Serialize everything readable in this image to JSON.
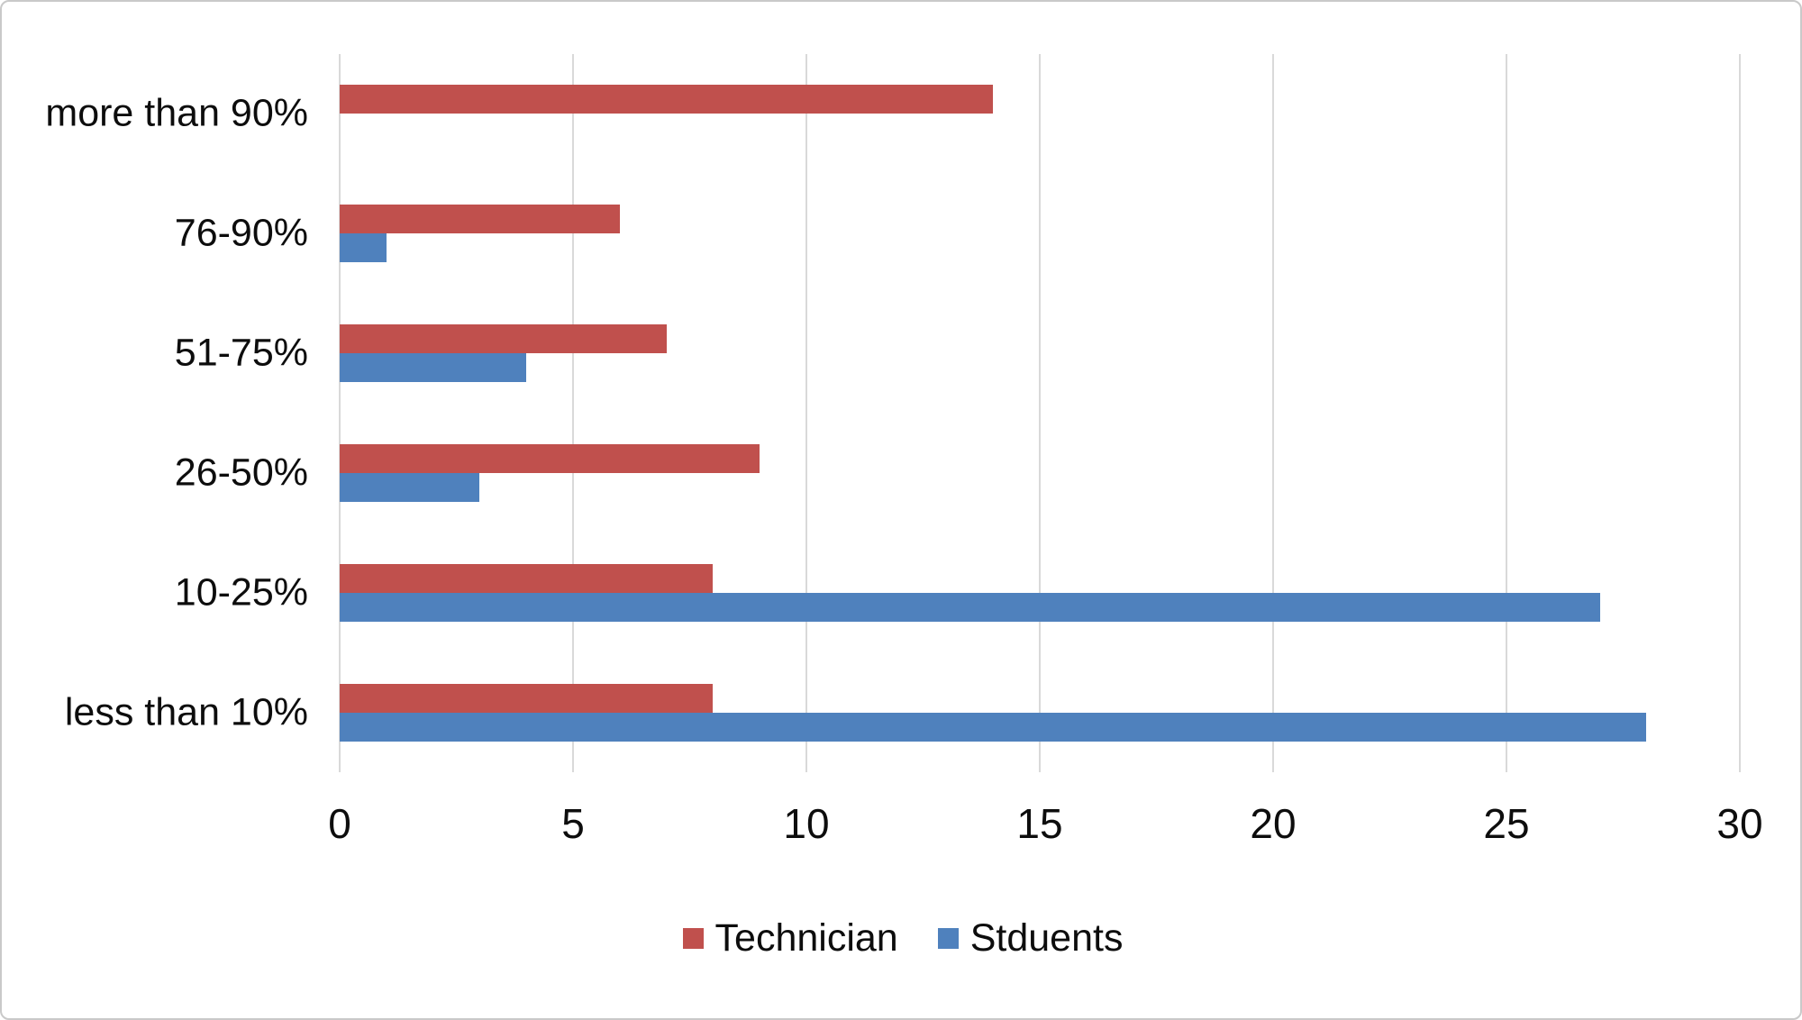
{
  "figure": {
    "background_color": "#ffffff",
    "border_color": "#c9c9c9",
    "gridline_color": "#d9d9d9",
    "text_color": "#0d0d0d"
  },
  "chart_data": {
    "type": "bar",
    "orientation": "horizontal",
    "title": "",
    "xlabel": "",
    "ylabel": "",
    "categories": [
      "more than 90%",
      "76-90%",
      "51-75%",
      "26-50%",
      "10-25%",
      "less than 10%"
    ],
    "series": [
      {
        "name": "Technician",
        "color": "#C0504D",
        "values": [
          14,
          6,
          7,
          9,
          8,
          8
        ]
      },
      {
        "name": "Stduents",
        "color": "#4F81BD",
        "values": [
          0,
          1,
          4,
          3,
          27,
          28
        ]
      }
    ],
    "xlim": [
      0,
      30
    ],
    "x_ticks": [
      "0",
      "5",
      "10",
      "15",
      "20",
      "25",
      "30"
    ],
    "grid": "vertical-only",
    "legend_position": "bottom-center"
  }
}
